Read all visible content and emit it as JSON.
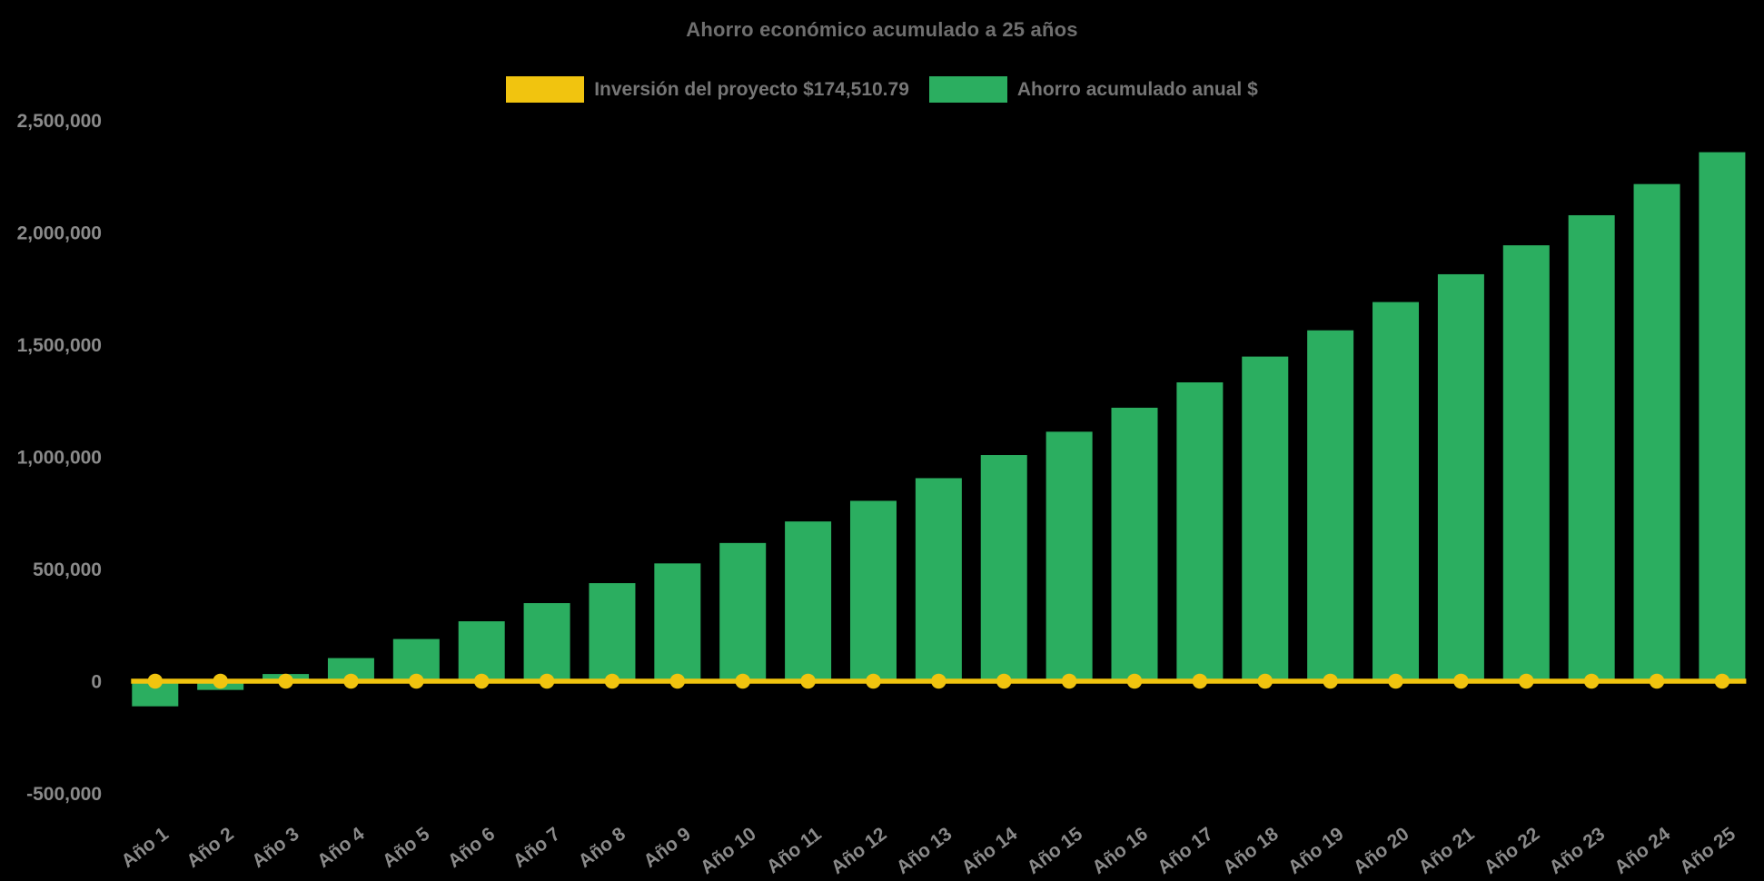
{
  "page": {
    "background": "#000000"
  },
  "title": "Ahorro económico acumulado a 25 años",
  "legend": {
    "items": [
      {
        "label": "Inversión del proyecto $174,510.79",
        "color": "#f1c40f"
      },
      {
        "label": "Ahorro acumulado anual $",
        "color": "#2bae60"
      }
    ]
  },
  "chart_data": {
    "type": "bar",
    "title": "Ahorro económico acumulado a 25 años",
    "categories": [
      "Año 1",
      "Año 2",
      "Año 3",
      "Año 4",
      "Año 5",
      "Año 6",
      "Año 7",
      "Año 8",
      "Año 9",
      "Año 10",
      "Año 11",
      "Año 12",
      "Año 13",
      "Año 14",
      "Año 15",
      "Año 16",
      "Año 17",
      "Año 18",
      "Año 19",
      "Año 20",
      "Año 21",
      "Año 22",
      "Año 23",
      "Año 24",
      "Año 25"
    ],
    "series": [
      {
        "name": "Inversión del proyecto $174,510.79",
        "type": "line",
        "color": "#f1c40f",
        "values": [
          0,
          0,
          0,
          0,
          0,
          0,
          0,
          0,
          0,
          0,
          0,
          0,
          0,
          0,
          0,
          0,
          0,
          0,
          0,
          0,
          0,
          0,
          0,
          0,
          0
        ]
      },
      {
        "name": "Ahorro acumulado anual $",
        "type": "bar",
        "color": "#2bae60",
        "values": [
          -112000,
          -39000,
          32000,
          103000,
          188000,
          267000,
          348000,
          437000,
          525000,
          616000,
          712000,
          804000,
          905000,
          1008000,
          1112000,
          1219000,
          1332000,
          1447000,
          1564000,
          1690000,
          1814000,
          1943000,
          2077000,
          2216000,
          2358000
        ]
      }
    ],
    "xlabel": "",
    "ylabel": "",
    "ylim": [
      -500000,
      2500000
    ],
    "ytick_step": 500000,
    "ytick_labels": [
      "-500,000",
      "0",
      "500,000",
      "1,000,000",
      "1,500,000",
      "2,000,000",
      "2,500,000"
    ],
    "grid": false,
    "legend_position": "top",
    "background": "#000000",
    "text_color": "#8a8a8a",
    "title_color": "#6f6f6f"
  }
}
